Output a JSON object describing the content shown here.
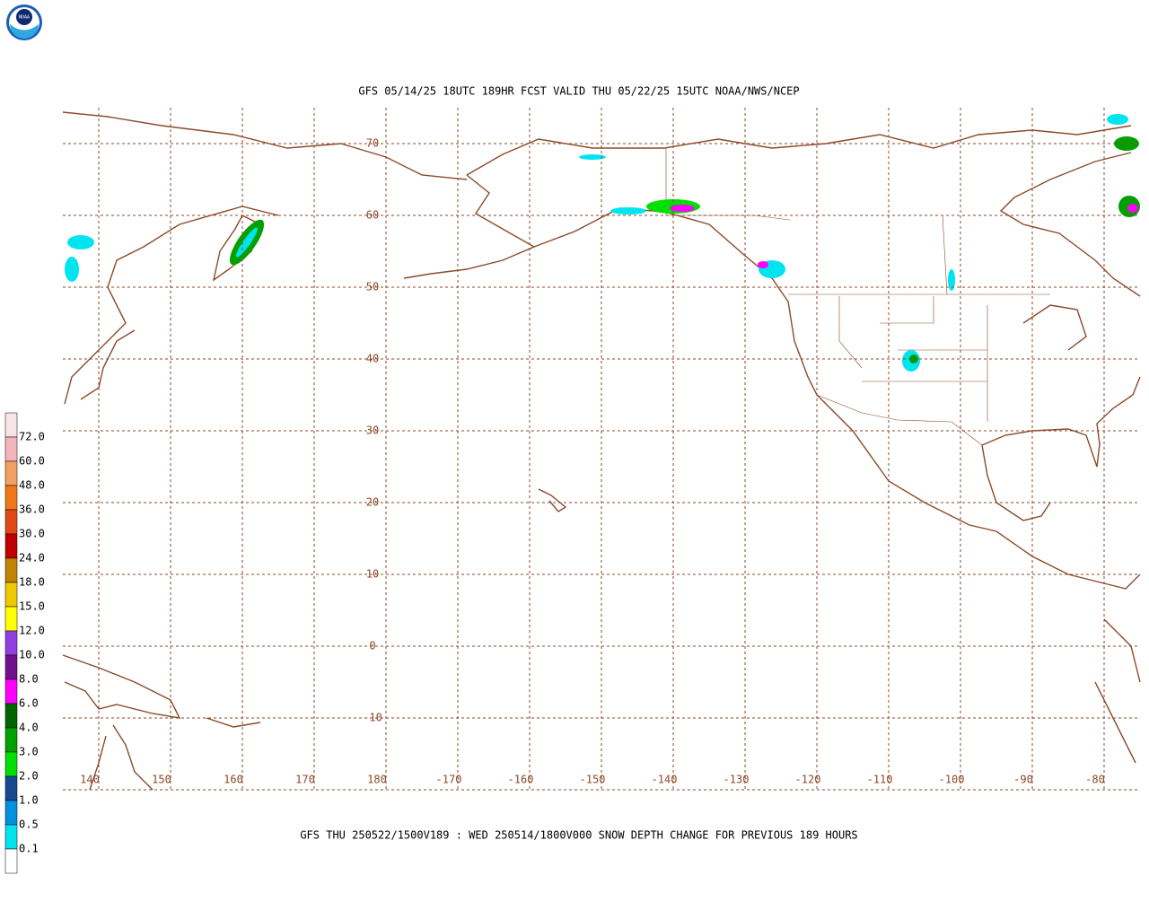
{
  "header": {
    "title": "GFS 05/14/25 18UTC 189HR FCST VALID THU 05/22/25 15UTC NOAA/NWS/NCEP"
  },
  "map": {
    "latitudes": [
      70,
      60,
      50,
      40,
      30,
      20,
      10,
      0,
      -10
    ],
    "longitudes": [
      140,
      150,
      160,
      170,
      180,
      -170,
      -160,
      -150,
      -140,
      -130,
      -120,
      -110,
      -100,
      -90,
      -80
    ]
  },
  "legend": {
    "labels": [
      "72.0",
      "60.0",
      "48.0",
      "36.0",
      "30.0",
      "24.0",
      "18.0",
      "15.0",
      "12.0",
      "10.0",
      "8.0",
      "6.0",
      "4.0",
      "3.0",
      "2.0",
      "1.0",
      "0.5",
      "0.1"
    ],
    "colors": [
      "#f8e4e4",
      "#f4b4bc",
      "#f0a060",
      "#f07818",
      "#e04818",
      "#c00000",
      "#c08400",
      "#f0c800",
      "#ffff00",
      "#9040e0",
      "#70108c",
      "#ff00ff",
      "#006400",
      "#00a000",
      "#00e000",
      "#184890",
      "#0090e0",
      "#00e4f0",
      "#ffffff"
    ]
  },
  "footer": {
    "caption": "GFS THU 250522/1500V189 : WED 250514/1800V000 SNOW DEPTH CHANGE FOR PREVIOUS 189 HOURS"
  }
}
